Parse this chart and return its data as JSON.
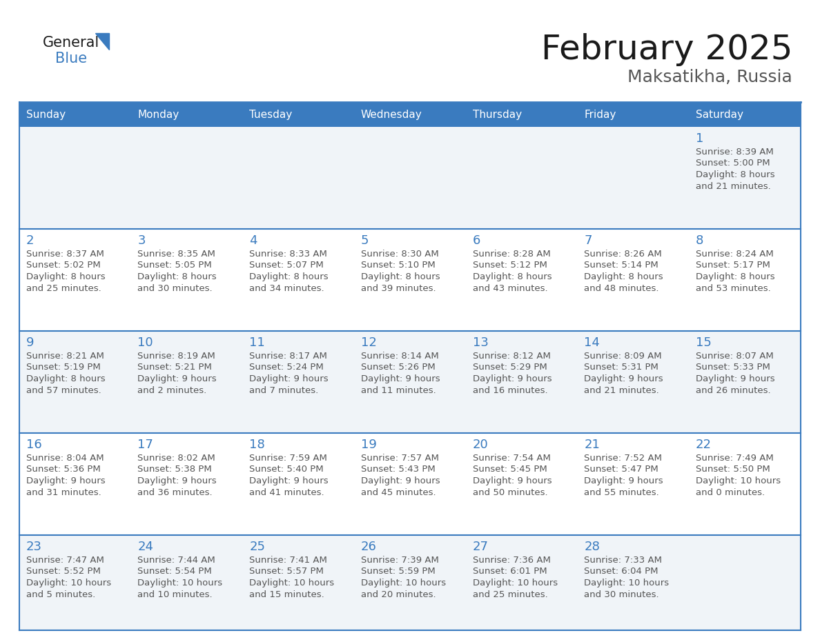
{
  "title": "February 2025",
  "subtitle": "Maksatikha, Russia",
  "days_of_week": [
    "Sunday",
    "Monday",
    "Tuesday",
    "Wednesday",
    "Thursday",
    "Friday",
    "Saturday"
  ],
  "header_bg": "#3a7bbf",
  "header_text": "#ffffff",
  "cell_bg_odd": "#f0f4f8",
  "cell_bg_even": "#ffffff",
  "day_number_color": "#3a7bbf",
  "info_text_color": "#555555",
  "border_color": "#3a7bbf",
  "title_color": "#1a1a1a",
  "subtitle_color": "#555555",
  "generalblue_dark": "#1a1a1a",
  "blue_color": "#3a7bbf",
  "calendar": [
    [
      null,
      null,
      null,
      null,
      null,
      null,
      1
    ],
    [
      2,
      3,
      4,
      5,
      6,
      7,
      8
    ],
    [
      9,
      10,
      11,
      12,
      13,
      14,
      15
    ],
    [
      16,
      17,
      18,
      19,
      20,
      21,
      22
    ],
    [
      23,
      24,
      25,
      26,
      27,
      28,
      null
    ]
  ],
  "sunrise": {
    "1": "8:39 AM",
    "2": "8:37 AM",
    "3": "8:35 AM",
    "4": "8:33 AM",
    "5": "8:30 AM",
    "6": "8:28 AM",
    "7": "8:26 AM",
    "8": "8:24 AM",
    "9": "8:21 AM",
    "10": "8:19 AM",
    "11": "8:17 AM",
    "12": "8:14 AM",
    "13": "8:12 AM",
    "14": "8:09 AM",
    "15": "8:07 AM",
    "16": "8:04 AM",
    "17": "8:02 AM",
    "18": "7:59 AM",
    "19": "7:57 AM",
    "20": "7:54 AM",
    "21": "7:52 AM",
    "22": "7:49 AM",
    "23": "7:47 AM",
    "24": "7:44 AM",
    "25": "7:41 AM",
    "26": "7:39 AM",
    "27": "7:36 AM",
    "28": "7:33 AM"
  },
  "sunset": {
    "1": "5:00 PM",
    "2": "5:02 PM",
    "3": "5:05 PM",
    "4": "5:07 PM",
    "5": "5:10 PM",
    "6": "5:12 PM",
    "7": "5:14 PM",
    "8": "5:17 PM",
    "9": "5:19 PM",
    "10": "5:21 PM",
    "11": "5:24 PM",
    "12": "5:26 PM",
    "13": "5:29 PM",
    "14": "5:31 PM",
    "15": "5:33 PM",
    "16": "5:36 PM",
    "17": "5:38 PM",
    "18": "5:40 PM",
    "19": "5:43 PM",
    "20": "5:45 PM",
    "21": "5:47 PM",
    "22": "5:50 PM",
    "23": "5:52 PM",
    "24": "5:54 PM",
    "25": "5:57 PM",
    "26": "5:59 PM",
    "27": "6:01 PM",
    "28": "6:04 PM"
  },
  "daylight_line1": {
    "1": "8 hours",
    "2": "8 hours",
    "3": "8 hours",
    "4": "8 hours",
    "5": "8 hours",
    "6": "8 hours",
    "7": "8 hours",
    "8": "8 hours",
    "9": "8 hours",
    "10": "9 hours",
    "11": "9 hours",
    "12": "9 hours",
    "13": "9 hours",
    "14": "9 hours",
    "15": "9 hours",
    "16": "9 hours",
    "17": "9 hours",
    "18": "9 hours",
    "19": "9 hours",
    "20": "9 hours",
    "21": "9 hours",
    "22": "10 hours",
    "23": "10 hours",
    "24": "10 hours",
    "25": "10 hours",
    "26": "10 hours",
    "27": "10 hours",
    "28": "10 hours"
  },
  "daylight_line2": {
    "1": "and 21 minutes.",
    "2": "and 25 minutes.",
    "3": "and 30 minutes.",
    "4": "and 34 minutes.",
    "5": "and 39 minutes.",
    "6": "and 43 minutes.",
    "7": "and 48 minutes.",
    "8": "and 53 minutes.",
    "9": "and 57 minutes.",
    "10": "and 2 minutes.",
    "11": "and 7 minutes.",
    "12": "and 11 minutes.",
    "13": "and 16 minutes.",
    "14": "and 21 minutes.",
    "15": "and 26 minutes.",
    "16": "and 31 minutes.",
    "17": "and 36 minutes.",
    "18": "and 41 minutes.",
    "19": "and 45 minutes.",
    "20": "and 50 minutes.",
    "21": "and 55 minutes.",
    "22": "and 0 minutes.",
    "23": "and 5 minutes.",
    "24": "and 10 minutes.",
    "25": "and 15 minutes.",
    "26": "and 20 minutes.",
    "27": "and 25 minutes.",
    "28": "and 30 minutes."
  }
}
